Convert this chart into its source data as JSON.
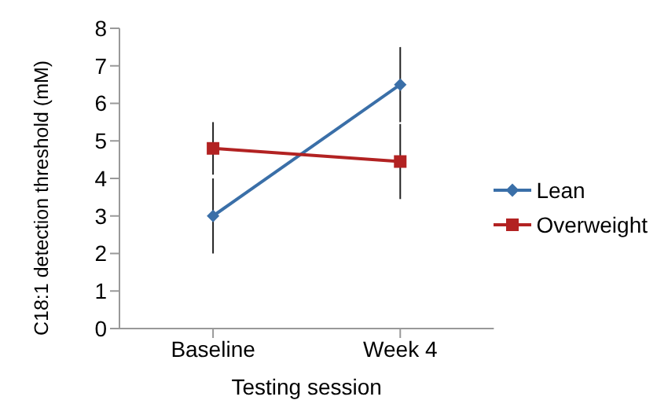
{
  "chart_data": {
    "type": "line",
    "xlabel": "Testing session",
    "ylabel": "C18:1 detection threshold (mM)",
    "categories": [
      "Baseline",
      "Week 4"
    ],
    "series": [
      {
        "name": "Lean",
        "color": "#3a6fa8",
        "values": [
          3.0,
          6.5
        ],
        "errors": [
          1.0,
          1.0
        ],
        "marker": "diamond"
      },
      {
        "name": "Overweight",
        "color": "#b22222",
        "values": [
          4.8,
          4.45
        ],
        "errors": [
          0.7,
          1.0
        ],
        "marker": "square"
      }
    ],
    "ylim": [
      0,
      8
    ],
    "yticks": [
      0,
      1,
      2,
      3,
      4,
      5,
      6,
      7,
      8
    ],
    "grid": false,
    "legend": "right",
    "line_style": "solid"
  }
}
